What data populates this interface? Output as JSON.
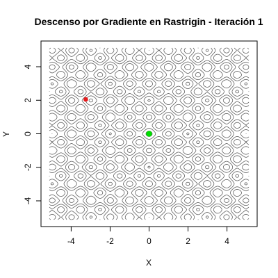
{
  "chart_data": {
    "type": "scatter",
    "title": "Descenso por Gradiente en Rastrigin - Iteración 1",
    "xlabel": "X",
    "ylabel": "Y",
    "xlim": [
      -5.12,
      5.12
    ],
    "ylim": [
      -5.12,
      5.12
    ],
    "x_ticks": [
      -4,
      -2,
      0,
      2,
      4
    ],
    "y_ticks": [
      -4,
      -2,
      0,
      2,
      4
    ],
    "grid": false,
    "contour_function": "Rastrigin",
    "contour_color": "#555555",
    "series": [
      {
        "x": [
          -3.25
        ],
        "y": [
          2.05
        ],
        "color": "#e41a1c"
      },
      {
        "x": [
          0
        ],
        "y": [
          0
        ],
        "color": "#00dd00"
      }
    ]
  }
}
